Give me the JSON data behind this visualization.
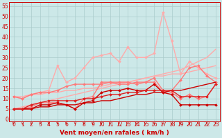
{
  "xlabel": "Vent moyen/en rafales ( km/h )",
  "bg_color": "#cce8e8",
  "grid_color": "#aacccc",
  "x_ticks": [
    0,
    1,
    2,
    3,
    4,
    5,
    6,
    7,
    8,
    9,
    10,
    11,
    12,
    13,
    14,
    15,
    16,
    17,
    18,
    19,
    20,
    21,
    22,
    23
  ],
  "ylim": [
    -1,
    57
  ],
  "yticks": [
    0,
    5,
    10,
    15,
    20,
    25,
    30,
    35,
    40,
    45,
    50,
    55
  ],
  "lines": [
    {
      "color": "#ffaaaa",
      "linewidth": 1.0,
      "marker": null,
      "y": [
        5,
        6,
        7,
        8,
        9,
        10,
        11,
        12,
        13,
        14,
        15,
        16,
        17,
        18,
        19,
        20,
        21,
        22,
        23,
        24,
        26,
        28,
        30,
        34
      ]
    },
    {
      "color": "#ffaaaa",
      "linewidth": 1.0,
      "marker": null,
      "y": [
        11,
        11,
        12,
        12,
        13,
        13,
        14,
        14,
        15,
        15,
        16,
        17,
        18,
        18,
        19,
        20,
        21,
        21,
        22,
        22,
        23,
        24,
        25,
        26
      ]
    },
    {
      "color": "#ffaaaa",
      "linewidth": 1.0,
      "marker": "D",
      "markersize": 2.0,
      "y": [
        11,
        10,
        12,
        13,
        14,
        26,
        18,
        20,
        25,
        30,
        31,
        32,
        28,
        35,
        30,
        30,
        32,
        52,
        38,
        22,
        28,
        25,
        22,
        20
      ]
    },
    {
      "color": "#ff7777",
      "linewidth": 1.0,
      "marker": "D",
      "markersize": 2.0,
      "y": [
        5,
        5,
        6,
        8,
        8,
        8,
        7,
        5,
        10,
        11,
        18,
        18,
        18,
        18,
        17,
        18,
        20,
        14,
        13,
        10,
        12,
        10,
        11,
        17
      ]
    },
    {
      "color": "#ff7777",
      "linewidth": 1.0,
      "marker": "D",
      "markersize": 2.0,
      "y": [
        11,
        10,
        12,
        13,
        13,
        14,
        16,
        17,
        17,
        17,
        17,
        18,
        17,
        17,
        18,
        18,
        18,
        13,
        14,
        19,
        25,
        26,
        21,
        18
      ]
    },
    {
      "color": "#cc0000",
      "linewidth": 1.0,
      "marker": null,
      "y": [
        5,
        5,
        5,
        6,
        6,
        7,
        7,
        7,
        8,
        8,
        9,
        9,
        10,
        11,
        12,
        12,
        13,
        13,
        14,
        14,
        15,
        16,
        17,
        18
      ]
    },
    {
      "color": "#cc0000",
      "linewidth": 1.0,
      "marker": "D",
      "markersize": 2.0,
      "y": [
        5,
        5,
        5,
        7,
        7,
        8,
        7,
        5,
        8,
        9,
        13,
        14,
        14,
        15,
        14,
        14,
        17,
        13,
        12,
        7,
        7,
        7,
        7,
        7
      ]
    },
    {
      "color": "#dd2222",
      "linewidth": 1.0,
      "marker": "D",
      "markersize": 2.0,
      "y": [
        5,
        5,
        7,
        8,
        9,
        9,
        9,
        9,
        10,
        10,
        11,
        12,
        12,
        13,
        13,
        14,
        14,
        14,
        14,
        11,
        11,
        11,
        11,
        17
      ]
    }
  ],
  "wind_arrows": true,
  "tick_fontsize": 5.5,
  "xlabel_fontsize": 6.5,
  "spine_color": "#cc0000",
  "tick_color": "#cc0000",
  "label_color": "#cc0000"
}
